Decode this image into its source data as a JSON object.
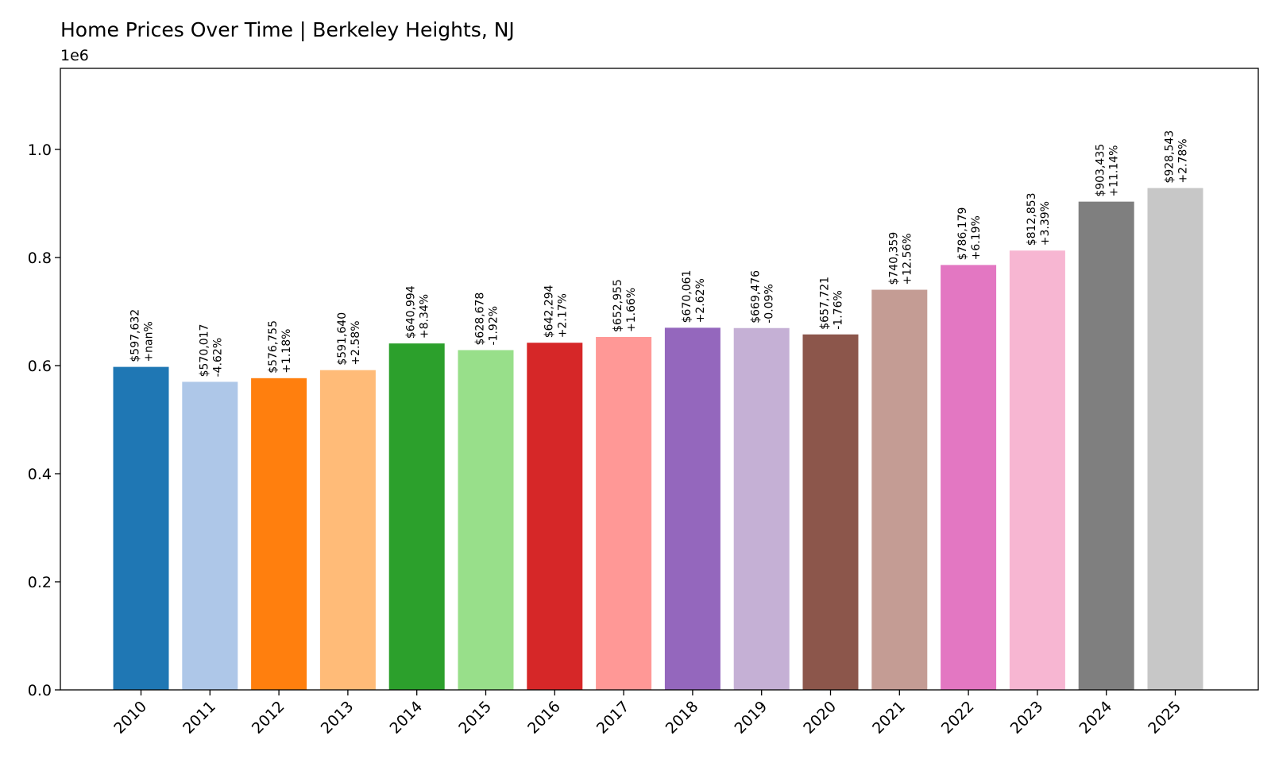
{
  "chart_data": {
    "type": "bar",
    "title": "Home Prices Over Time | Berkeley Heights, NJ",
    "xlabel": "",
    "ylabel": "",
    "y_offset_label": "1e6",
    "ylim": [
      0,
      1150000
    ],
    "yticks": [
      0.0,
      0.2,
      0.4,
      0.6,
      0.8,
      1.0
    ],
    "ytick_labels": [
      "0.0",
      "0.2",
      "0.4",
      "0.6",
      "0.8",
      "1.0"
    ],
    "y_scale": 1000000,
    "categories": [
      "2010",
      "2011",
      "2012",
      "2013",
      "2014",
      "2015",
      "2016",
      "2017",
      "2018",
      "2019",
      "2020",
      "2021",
      "2022",
      "2023",
      "2024",
      "2025"
    ],
    "values": [
      597632,
      570017,
      576755,
      591640,
      640994,
      628678,
      642294,
      652955,
      670061,
      669476,
      657721,
      740359,
      786179,
      812853,
      903435,
      928543
    ],
    "value_labels": [
      "$597,632",
      "$570,017",
      "$576,755",
      "$591,640",
      "$640,994",
      "$628,678",
      "$642,294",
      "$652,955",
      "$670,061",
      "$669,476",
      "$657,721",
      "$740,359",
      "$786,179",
      "$812,853",
      "$903,435",
      "$928,543"
    ],
    "change_labels": [
      "+nan%",
      "-4.62%",
      "+1.18%",
      "+2.58%",
      "+8.34%",
      "-1.92%",
      "+2.17%",
      "+1.66%",
      "+2.62%",
      "-0.09%",
      "-1.76%",
      "+12.56%",
      "+6.19%",
      "+3.39%",
      "+11.14%",
      "+2.78%"
    ],
    "colors": [
      "#1f77b4",
      "#aec7e8",
      "#ff7f0e",
      "#ffbb78",
      "#2ca02c",
      "#98df8a",
      "#d62728",
      "#ff9896",
      "#9467bd",
      "#c5b0d5",
      "#8c564b",
      "#c49c94",
      "#e377c2",
      "#f7b6d2",
      "#7f7f7f",
      "#c7c7c7"
    ],
    "grid": false,
    "legend": "none"
  }
}
